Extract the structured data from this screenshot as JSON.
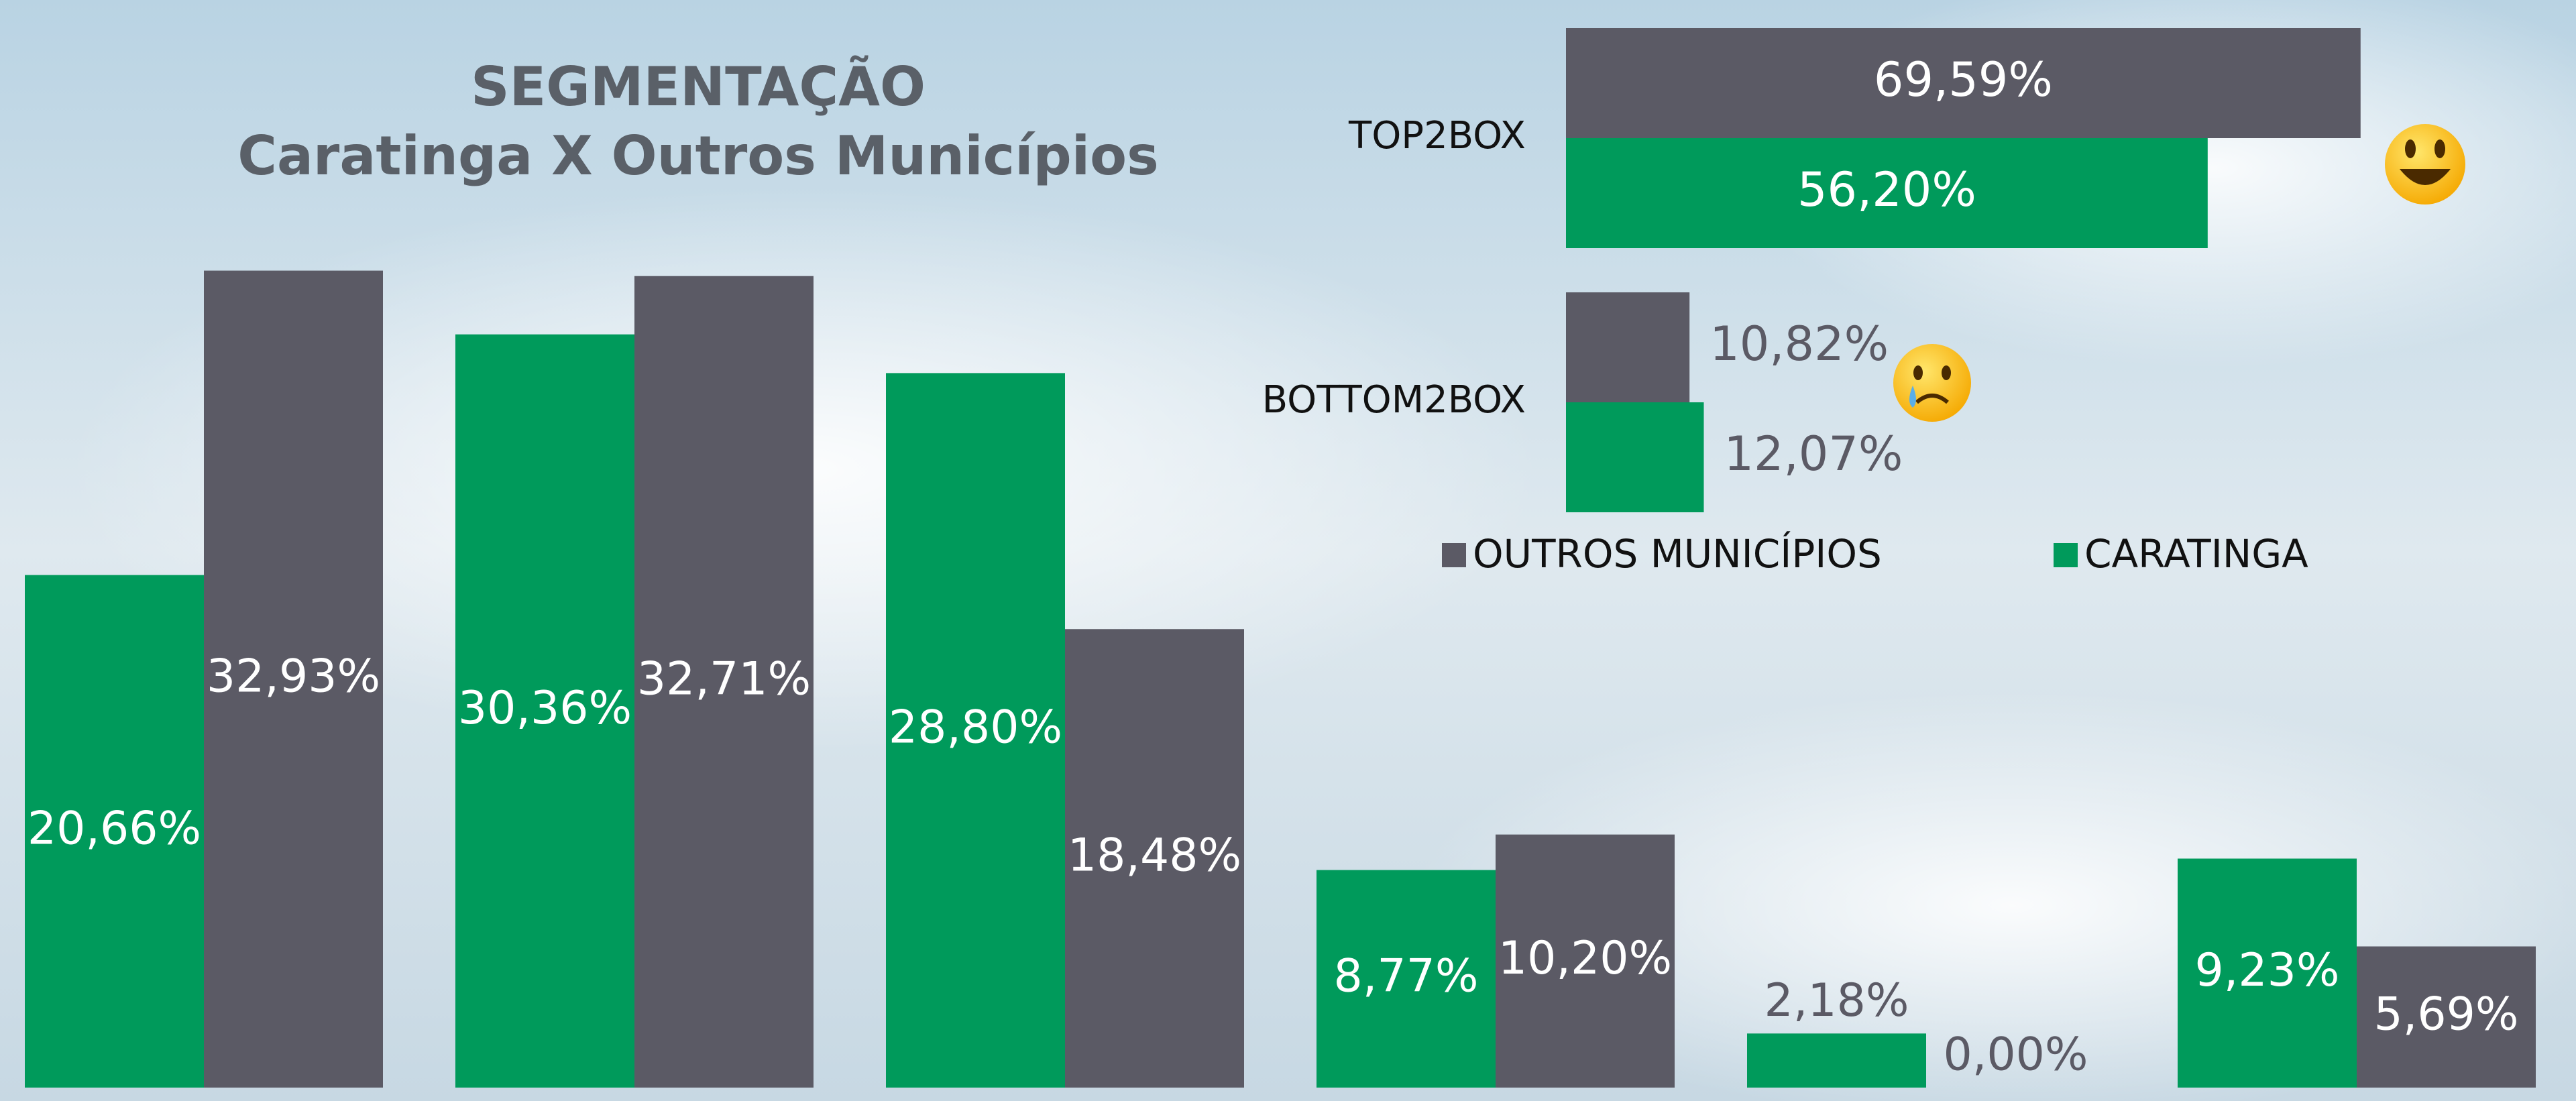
{
  "chart_data": [
    {
      "type": "bar",
      "title": "SEGMENTAÇÃO",
      "subtitle": "Caratinga X Outros Municípios",
      "categories": [
        null,
        null,
        null,
        null,
        null,
        null
      ],
      "series": [
        {
          "name": "CARATINGA",
          "color": "#009a5b",
          "values": [
            20.66,
            30.36,
            28.8,
            8.77,
            2.18,
            9.23
          ],
          "value_labels": [
            "20,66%",
            "30,36%",
            "28,80%",
            "8,77%",
            "2,18%",
            "9,23%"
          ]
        },
        {
          "name": "OUTROS MUNICÍPIOS",
          "color": "#5b5a65",
          "values": [
            32.93,
            32.71,
            18.48,
            10.2,
            0.0,
            5.69
          ],
          "value_labels": [
            "32,93%",
            "32,71%",
            "18,48%",
            "10,20%",
            "0,00%",
            "5,69%"
          ]
        }
      ],
      "ylim": [
        0,
        40
      ]
    },
    {
      "type": "hbar",
      "categories": [
        "TOP2BOX",
        "BOTTOM2BOX"
      ],
      "series": [
        {
          "name": "OUTROS MUNICÍPIOS",
          "color": "#5b5a65",
          "values": [
            69.59,
            10.82
          ],
          "value_labels": [
            "69,59%",
            "10,82%"
          ]
        },
        {
          "name": "CARATINGA",
          "color": "#009a5b",
          "values": [
            56.2,
            12.07
          ],
          "value_labels": [
            "56,20%",
            "12,07%"
          ]
        }
      ],
      "xlim": [
        0,
        80
      ],
      "legend": "bottom"
    }
  ]
}
